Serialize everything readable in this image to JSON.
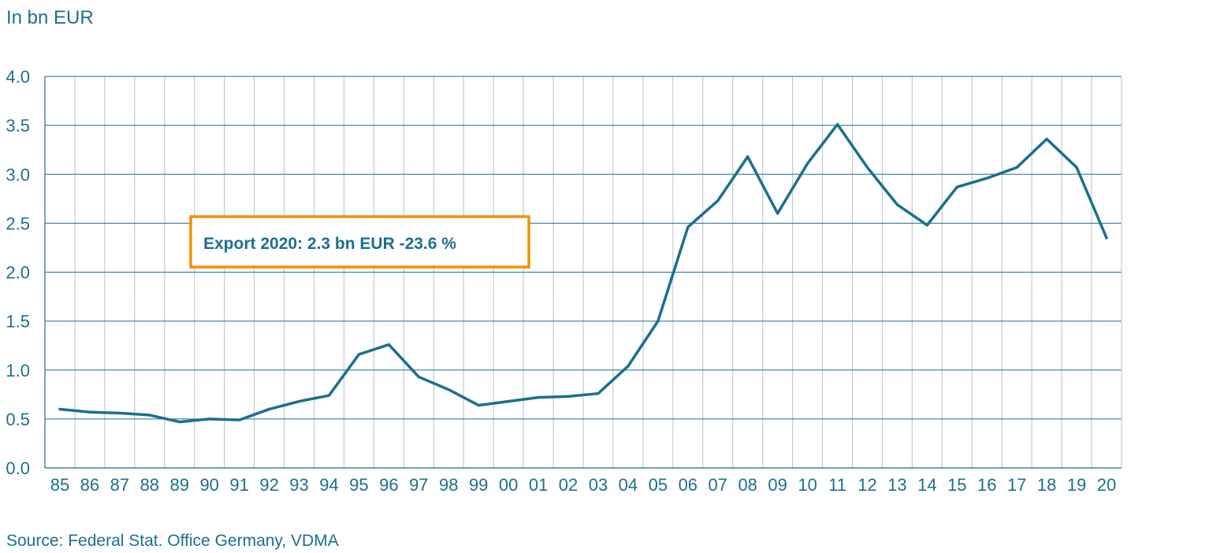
{
  "chart_data": {
    "type": "line",
    "unit_label": "In bn EUR",
    "source": "Source: Federal Stat. Office Germany, VDMA",
    "annotation": "Export 2020: 2.3 bn EUR -23.6 %",
    "categories": [
      "85",
      "86",
      "87",
      "88",
      "89",
      "90",
      "91",
      "92",
      "93",
      "94",
      "95",
      "96",
      "97",
      "98",
      "99",
      "00",
      "01",
      "02",
      "03",
      "04",
      "05",
      "06",
      "07",
      "08",
      "09",
      "10",
      "11",
      "12",
      "13",
      "14",
      "15",
      "16",
      "17",
      "18",
      "19",
      "20"
    ],
    "values": [
      0.6,
      0.57,
      0.56,
      0.54,
      0.47,
      0.5,
      0.49,
      0.6,
      0.68,
      0.74,
      1.16,
      1.26,
      0.93,
      0.8,
      0.64,
      0.68,
      0.72,
      0.73,
      0.76,
      1.04,
      1.5,
      2.46,
      2.73,
      3.18,
      2.6,
      3.11,
      3.51,
      3.07,
      2.69,
      2.48,
      2.87,
      2.96,
      3.07,
      3.36,
      3.07,
      2.35
    ],
    "ylim": [
      0,
      4.0
    ],
    "yticks": [
      "0.0",
      "0.5",
      "1.0",
      "1.5",
      "2.0",
      "2.5",
      "3.0",
      "3.5",
      "4.0"
    ],
    "grid": true,
    "colors": {
      "line": "#1b6f8f",
      "text": "#1b6f8f",
      "grid_horizontal": "#1b6f8f",
      "grid_vertical": "#c8c8c8",
      "annotation_border": "#f29100"
    }
  }
}
